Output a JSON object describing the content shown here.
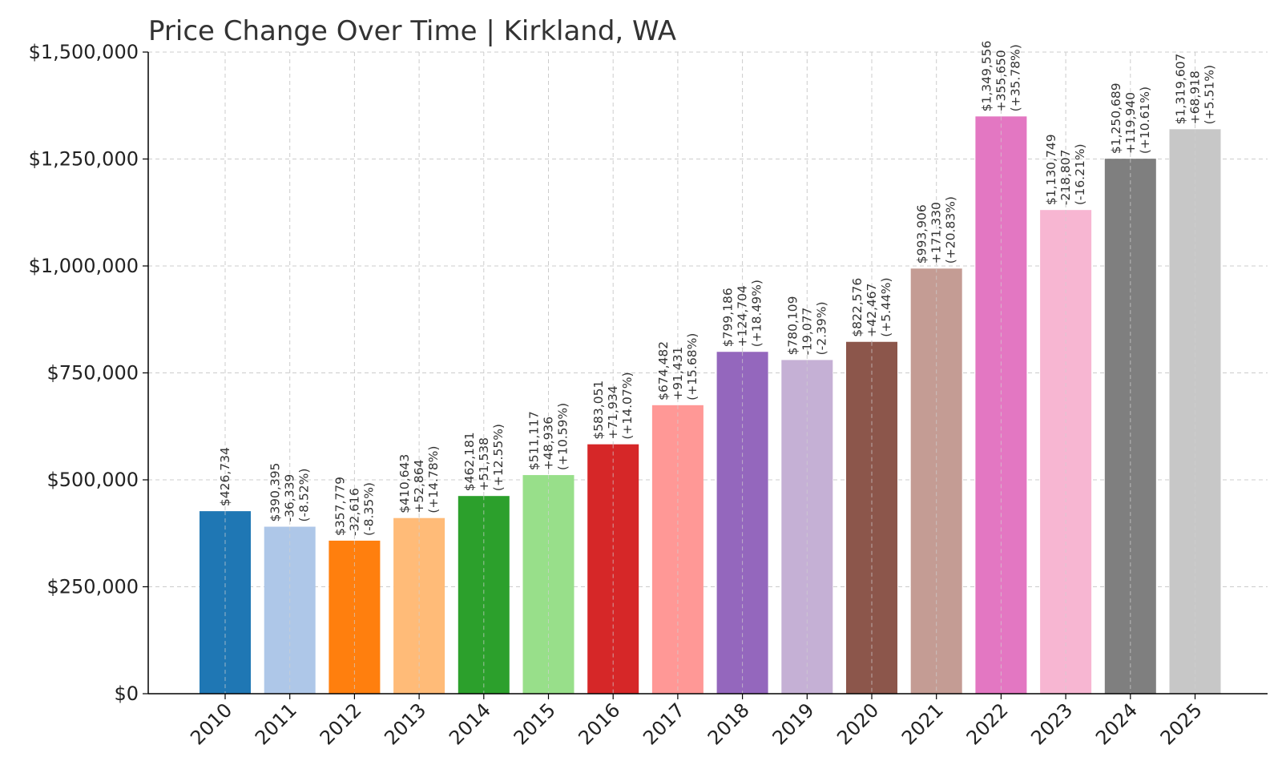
{
  "chart_data": {
    "type": "bar",
    "title": "Price Change Over Time | Kirkland, WA",
    "xlabel": "",
    "ylabel": "",
    "ylim": [
      0,
      1500000
    ],
    "yticks": [
      0,
      250000,
      500000,
      750000,
      1000000,
      1250000,
      1500000
    ],
    "ytick_labels": [
      "$0",
      "$250,000",
      "$500,000",
      "$750,000",
      "$1,000,000",
      "$1,250,000",
      "$1,500,000"
    ],
    "grid": true,
    "legend": "none",
    "categories": [
      "2010",
      "2011",
      "2012",
      "2013",
      "2014",
      "2015",
      "2016",
      "2017",
      "2018",
      "2019",
      "2020",
      "2021",
      "2022",
      "2023",
      "2024",
      "2025"
    ],
    "values": [
      426734,
      390395,
      357779,
      410643,
      462181,
      511117,
      583051,
      674482,
      799186,
      780109,
      822576,
      993906,
      1349556,
      1130749,
      1250689,
      1319607
    ],
    "value_labels": [
      "$426,734",
      "$390,395",
      "$357,779",
      "$410,643",
      "$462,181",
      "$511,117",
      "$583,051",
      "$674,482",
      "$799,186",
      "$780,109",
      "$822,576",
      "$993,906",
      "$1,349,556",
      "$1,130,749",
      "$1,250,689",
      "$1,319,607"
    ],
    "change_labels": [
      "",
      "-36,339",
      "-32,616",
      "+52,864",
      "+51,538",
      "+48,936",
      "+71,934",
      "+91,431",
      "+124,704",
      "-19,077",
      "+42,467",
      "+171,330",
      "+355,650",
      "-218,807",
      "+119,940",
      "+68,918"
    ],
    "pct_labels": [
      "",
      "(-8.52%)",
      "(-8.35%)",
      "(+14.78%)",
      "(+12.55%)",
      "(+10.59%)",
      "(+14.07%)",
      "(+15.68%)",
      "(+18.49%)",
      "(-2.39%)",
      "(+5.44%)",
      "(+20.83%)",
      "(+35.78%)",
      "(-16.21%)",
      "(+10.61%)",
      "(+5.51%)"
    ],
    "colors": [
      "#1f77b4",
      "#aec7e8",
      "#ff7f0e",
      "#ffbb78",
      "#2ca02c",
      "#98df8a",
      "#d62728",
      "#ff9896",
      "#9467bd",
      "#c5b0d5",
      "#8c564b",
      "#c49c94",
      "#e377c2",
      "#f7b6d2",
      "#7f7f7f",
      "#c7c7c7"
    ]
  }
}
